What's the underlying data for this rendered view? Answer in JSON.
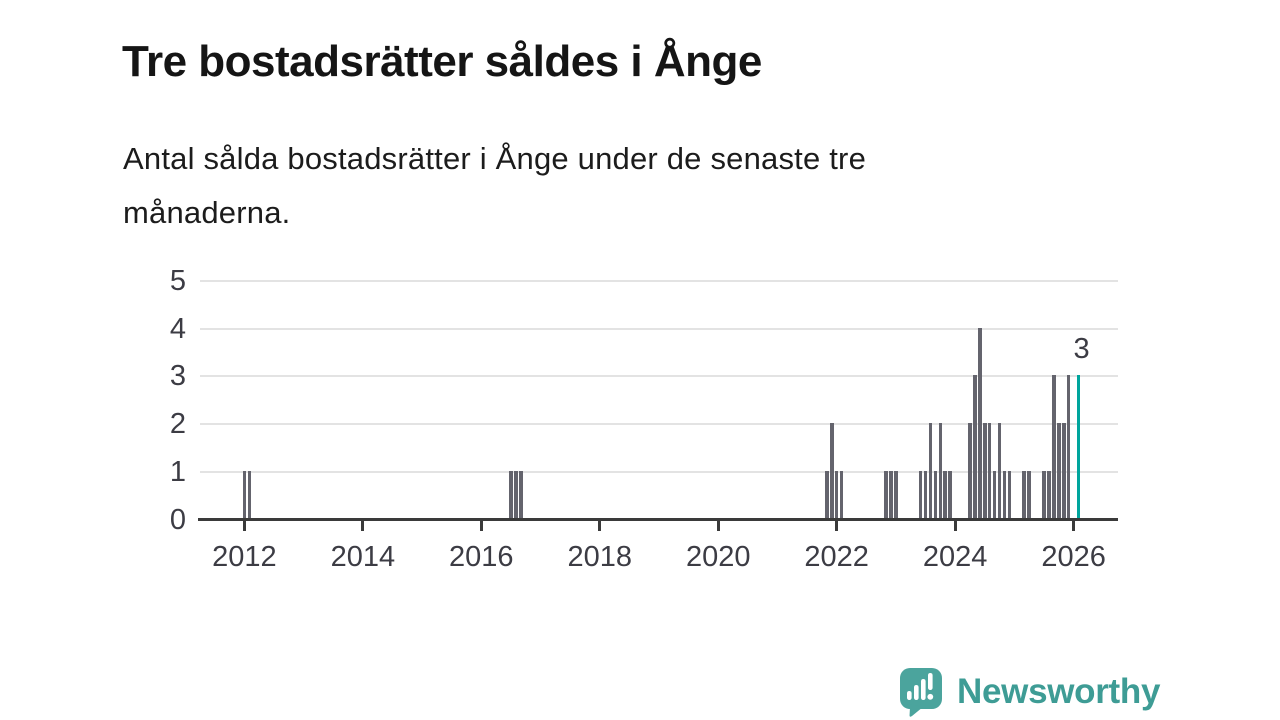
{
  "header": {
    "title": "Tre bostadsrätter såldes i Ånge",
    "subtitle": "Antal sålda bostadsrätter i Ånge under de senaste tre månaderna.",
    "subtitle_lines": [
      "Antal sålda bostadsrätter i Ånge under de senaste tre",
      "månaderna."
    ]
  },
  "chart_data": {
    "type": "bar",
    "title": "Tre bostadsrätter såldes i Ånge",
    "subtitle": "Antal sålda bostadsrätter i Ånge under de senaste tre månaderna.",
    "grid": true,
    "legend_position": "none",
    "ylim": [
      0,
      5
    ],
    "y_ticks": [
      0,
      1,
      2,
      3,
      4,
      5
    ],
    "x_ticks": [
      "2012",
      "2014",
      "2016",
      "2018",
      "2020",
      "2022",
      "2024",
      "2026"
    ],
    "x_range_months": {
      "start": "2011-04",
      "end": "2026-10"
    },
    "bars": [
      {
        "date": "2012-01",
        "value": 1
      },
      {
        "date": "2012-02",
        "value": 1
      },
      {
        "date": "2016-07",
        "value": 1
      },
      {
        "date": "2016-08",
        "value": 1
      },
      {
        "date": "2016-09",
        "value": 1
      },
      {
        "date": "2021-11",
        "value": 1
      },
      {
        "date": "2021-12",
        "value": 2
      },
      {
        "date": "2022-01",
        "value": 1
      },
      {
        "date": "2022-02",
        "value": 1
      },
      {
        "date": "2022-11",
        "value": 1
      },
      {
        "date": "2022-12",
        "value": 1
      },
      {
        "date": "2023-01",
        "value": 1
      },
      {
        "date": "2023-06",
        "value": 1
      },
      {
        "date": "2023-07",
        "value": 1
      },
      {
        "date": "2023-08",
        "value": 2
      },
      {
        "date": "2023-09",
        "value": 1
      },
      {
        "date": "2023-10",
        "value": 2
      },
      {
        "date": "2023-11",
        "value": 1
      },
      {
        "date": "2023-12",
        "value": 1
      },
      {
        "date": "2024-04",
        "value": 2
      },
      {
        "date": "2024-05",
        "value": 3
      },
      {
        "date": "2024-06",
        "value": 4
      },
      {
        "date": "2024-07",
        "value": 2
      },
      {
        "date": "2024-08",
        "value": 2
      },
      {
        "date": "2024-09",
        "value": 1
      },
      {
        "date": "2024-10",
        "value": 2
      },
      {
        "date": "2024-11",
        "value": 1
      },
      {
        "date": "2024-12",
        "value": 1
      },
      {
        "date": "2025-03",
        "value": 1
      },
      {
        "date": "2025-04",
        "value": 1
      },
      {
        "date": "2025-07",
        "value": 1
      },
      {
        "date": "2025-08",
        "value": 1
      },
      {
        "date": "2025-09",
        "value": 3
      },
      {
        "date": "2025-10",
        "value": 2
      },
      {
        "date": "2025-11",
        "value": 2
      },
      {
        "date": "2025-12",
        "value": 3
      },
      {
        "date": "2026-02",
        "value": 3,
        "highlight": true,
        "label": "3"
      }
    ],
    "colors": {
      "bar": "#64646d",
      "highlight": "#00A59D",
      "gridline": "#e3e3e3",
      "axis": "#3a3a3a",
      "tick_label": "#3c3c44"
    }
  },
  "footer": {
    "brand": "Newsworthy",
    "logo_icon": "newsworthy-speech-bubble-bar-chart-icon",
    "brand_color": "#3E9C95",
    "icon_color": "#4BA49D"
  }
}
